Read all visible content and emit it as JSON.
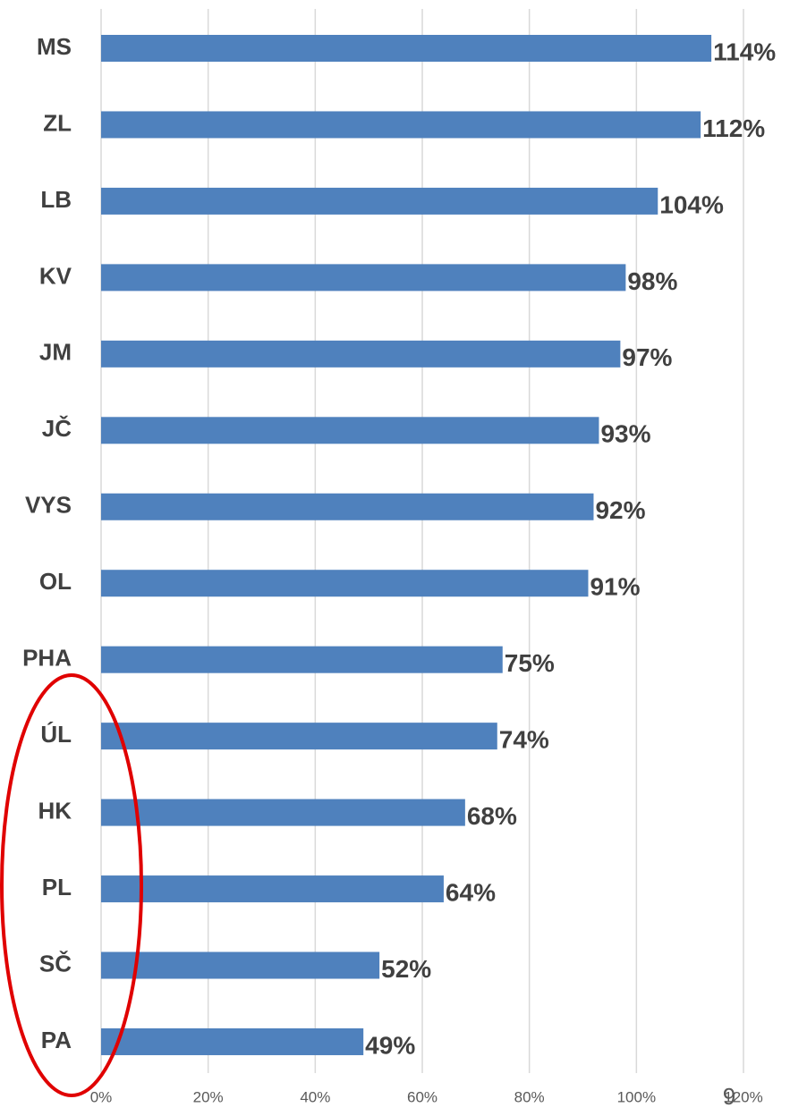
{
  "chart_data": {
    "type": "barh",
    "categories": [
      "MS",
      "ZL",
      "LB",
      "KV",
      "JM",
      "JČ",
      "VYS",
      "OL",
      "PHA",
      "ÚL",
      "HK",
      "PL",
      "SČ",
      "PA"
    ],
    "values": [
      114,
      112,
      104,
      98,
      97,
      93,
      92,
      91,
      75,
      74,
      68,
      64,
      52,
      49
    ],
    "value_labels": [
      "114%",
      "112%",
      "104%",
      "98%",
      "97%",
      "93%",
      "92%",
      "91%",
      "75%",
      "74%",
      "68%",
      "64%",
      "52%",
      "49%"
    ],
    "color": "#4f81bd",
    "xlim": [
      0,
      120
    ],
    "xticks": [
      {
        "value": 0,
        "label": "0%"
      },
      {
        "value": 20,
        "label": "20%"
      },
      {
        "value": 40,
        "label": "40%"
      },
      {
        "value": 60,
        "label": "60%"
      },
      {
        "value": 80,
        "label": "80%"
      },
      {
        "value": 100,
        "label": "100%"
      },
      {
        "value": 120,
        "label": "120%"
      }
    ],
    "grid": true,
    "page_number": "9"
  }
}
